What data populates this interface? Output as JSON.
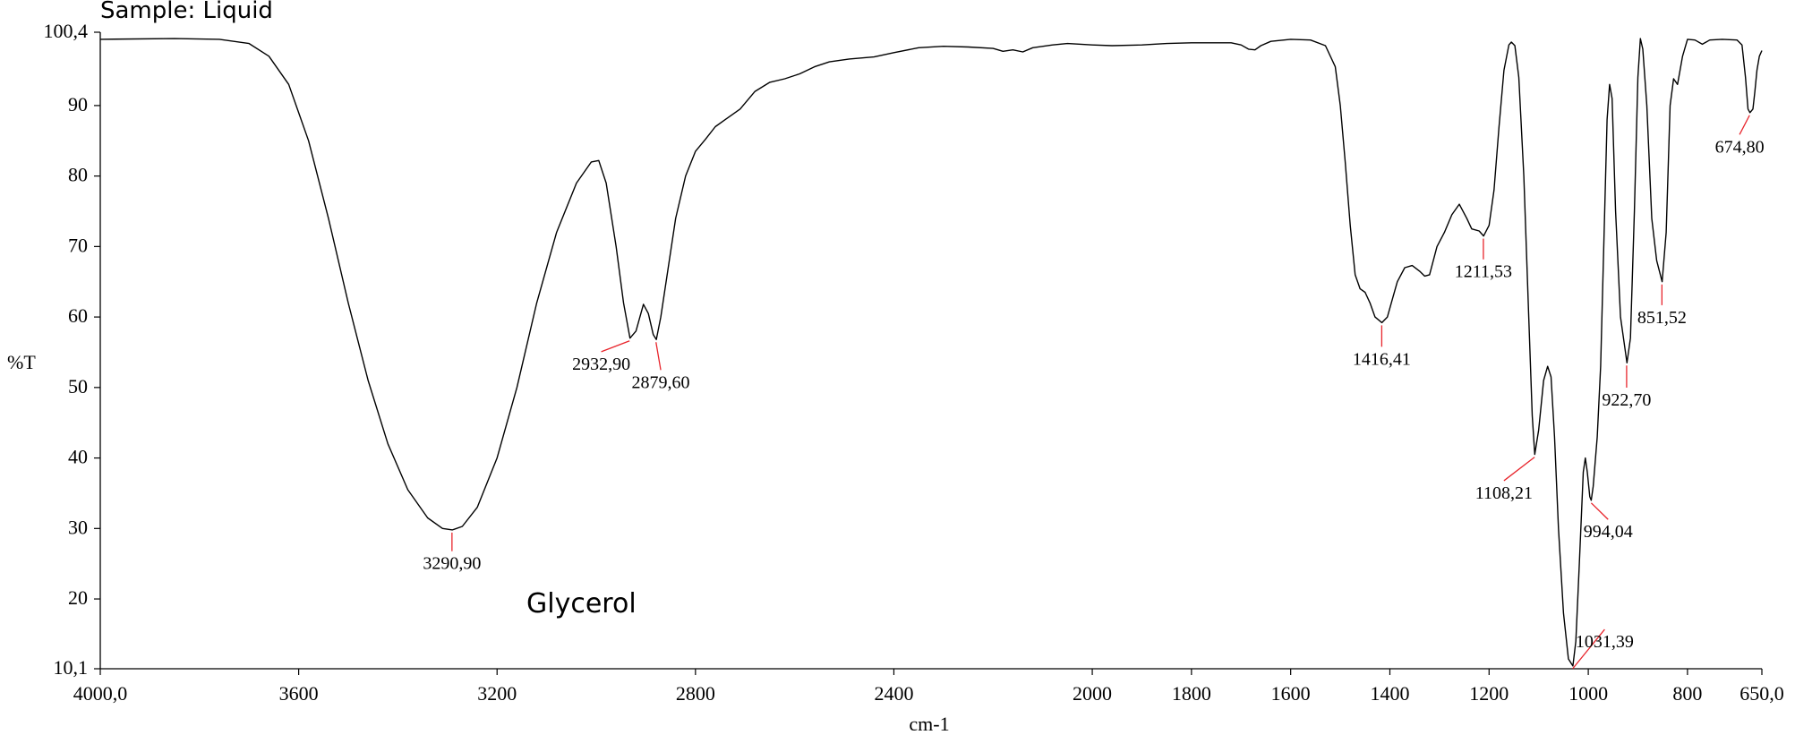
{
  "chart_data": {
    "type": "line",
    "title": "Sample: Liquid",
    "annotation": "Glycerol",
    "xlabel": "cm-1",
    "ylabel": "%T",
    "xlim": [
      4000.0,
      650.0
    ],
    "ylim": [
      10.1,
      100.4
    ],
    "x_reversed": true,
    "grid": false,
    "x_ticks": [
      {
        "value": 4000,
        "label": "4000,0"
      },
      {
        "value": 3600,
        "label": "3600"
      },
      {
        "value": 3200,
        "label": "3200"
      },
      {
        "value": 2800,
        "label": "2800"
      },
      {
        "value": 2400,
        "label": "2400"
      },
      {
        "value": 2000,
        "label": "2000"
      },
      {
        "value": 1800,
        "label": "1800"
      },
      {
        "value": 1600,
        "label": "1600"
      },
      {
        "value": 1400,
        "label": "1400"
      },
      {
        "value": 1200,
        "label": "1200"
      },
      {
        "value": 1000,
        "label": "1000"
      },
      {
        "value": 800,
        "label": "800"
      },
      {
        "value": 650,
        "label": "650,0"
      }
    ],
    "y_ticks": [
      {
        "value": 100.4,
        "label": "100,4"
      },
      {
        "value": 90,
        "label": "90"
      },
      {
        "value": 80,
        "label": "80"
      },
      {
        "value": 70,
        "label": "70"
      },
      {
        "value": 60,
        "label": "60"
      },
      {
        "value": 50,
        "label": "50"
      },
      {
        "value": 40,
        "label": "40"
      },
      {
        "value": 30,
        "label": "30"
      },
      {
        "value": 20,
        "label": "20"
      },
      {
        "value": 10.1,
        "label": "10,1"
      }
    ],
    "series": [
      {
        "color": "#000000",
        "points": [
          [
            4000,
            99.4
          ],
          [
            3850,
            99.5
          ],
          [
            3760,
            99.4
          ],
          [
            3700,
            98.8
          ],
          [
            3660,
            97.0
          ],
          [
            3620,
            93.0
          ],
          [
            3580,
            85.0
          ],
          [
            3540,
            74.0
          ],
          [
            3500,
            62.0
          ],
          [
            3460,
            51.0
          ],
          [
            3420,
            42.0
          ],
          [
            3380,
            35.5
          ],
          [
            3340,
            31.5
          ],
          [
            3310,
            30.0
          ],
          [
            3290,
            29.8
          ],
          [
            3270,
            30.3
          ],
          [
            3240,
            33.0
          ],
          [
            3200,
            40.0
          ],
          [
            3160,
            50.0
          ],
          [
            3120,
            62.0
          ],
          [
            3080,
            72.0
          ],
          [
            3040,
            79.0
          ],
          [
            3010,
            82.0
          ],
          [
            2995,
            82.2
          ],
          [
            2980,
            79.0
          ],
          [
            2960,
            70.0
          ],
          [
            2945,
            62.0
          ],
          [
            2932,
            57.0
          ],
          [
            2920,
            58.0
          ],
          [
            2905,
            61.8
          ],
          [
            2895,
            60.5
          ],
          [
            2885,
            57.5
          ],
          [
            2879,
            56.8
          ],
          [
            2870,
            60.0
          ],
          [
            2855,
            67.0
          ],
          [
            2840,
            74.0
          ],
          [
            2820,
            80.0
          ],
          [
            2800,
            83.5
          ],
          [
            2780,
            85.2
          ],
          [
            2760,
            87.0
          ],
          [
            2740,
            88.0
          ],
          [
            2710,
            89.5
          ],
          [
            2680,
            92.0
          ],
          [
            2650,
            93.3
          ],
          [
            2620,
            93.8
          ],
          [
            2590,
            94.5
          ],
          [
            2560,
            95.5
          ],
          [
            2530,
            96.2
          ],
          [
            2490,
            96.6
          ],
          [
            2440,
            96.9
          ],
          [
            2400,
            97.5
          ],
          [
            2350,
            98.2
          ],
          [
            2300,
            98.4
          ],
          [
            2250,
            98.3
          ],
          [
            2200,
            98.1
          ],
          [
            2180,
            97.7
          ],
          [
            2160,
            97.9
          ],
          [
            2140,
            97.6
          ],
          [
            2120,
            98.2
          ],
          [
            2080,
            98.6
          ],
          [
            2050,
            98.8
          ],
          [
            2000,
            98.6
          ],
          [
            1960,
            98.5
          ],
          [
            1900,
            98.6
          ],
          [
            1850,
            98.8
          ],
          [
            1800,
            98.9
          ],
          [
            1750,
            98.9
          ],
          [
            1720,
            98.9
          ],
          [
            1700,
            98.6
          ],
          [
            1685,
            98.0
          ],
          [
            1672,
            97.9
          ],
          [
            1660,
            98.5
          ],
          [
            1640,
            99.1
          ],
          [
            1600,
            99.4
          ],
          [
            1560,
            99.3
          ],
          [
            1530,
            98.5
          ],
          [
            1510,
            95.5
          ],
          [
            1500,
            90.0
          ],
          [
            1490,
            82.0
          ],
          [
            1480,
            73.0
          ],
          [
            1470,
            66.0
          ],
          [
            1460,
            64.0
          ],
          [
            1450,
            63.5
          ],
          [
            1440,
            62.0
          ],
          [
            1430,
            60.0
          ],
          [
            1416,
            59.2
          ],
          [
            1405,
            60.0
          ],
          [
            1395,
            62.5
          ],
          [
            1385,
            65.0
          ],
          [
            1370,
            67.0
          ],
          [
            1355,
            67.3
          ],
          [
            1340,
            66.5
          ],
          [
            1330,
            65.8
          ],
          [
            1320,
            66.0
          ],
          [
            1305,
            70.0
          ],
          [
            1290,
            72.0
          ],
          [
            1275,
            74.5
          ],
          [
            1260,
            76.0
          ],
          [
            1245,
            74.0
          ],
          [
            1235,
            72.5
          ],
          [
            1220,
            72.2
          ],
          [
            1211,
            71.5
          ],
          [
            1200,
            73.0
          ],
          [
            1190,
            78.0
          ],
          [
            1180,
            87.0
          ],
          [
            1170,
            95.0
          ],
          [
            1160,
            98.6
          ],
          [
            1155,
            99.0
          ],
          [
            1148,
            98.5
          ],
          [
            1140,
            94.0
          ],
          [
            1130,
            80.0
          ],
          [
            1120,
            60.0
          ],
          [
            1113,
            46.0
          ],
          [
            1108,
            40.5
          ],
          [
            1100,
            44.0
          ],
          [
            1090,
            51.0
          ],
          [
            1082,
            53.0
          ],
          [
            1075,
            51.5
          ],
          [
            1068,
            43.0
          ],
          [
            1060,
            30.0
          ],
          [
            1050,
            18.0
          ],
          [
            1040,
            11.5
          ],
          [
            1031,
            10.5
          ],
          [
            1025,
            14.0
          ],
          [
            1018,
            25.0
          ],
          [
            1010,
            38.0
          ],
          [
            1006,
            40.0
          ],
          [
            1002,
            38.0
          ],
          [
            997,
            34.5
          ],
          [
            994,
            34.0
          ],
          [
            990,
            36.0
          ],
          [
            982,
            43.0
          ],
          [
            975,
            53.0
          ],
          [
            968,
            72.0
          ],
          [
            962,
            88.0
          ],
          [
            957,
            93.0
          ],
          [
            952,
            91.0
          ],
          [
            945,
            75.0
          ],
          [
            935,
            60.0
          ],
          [
            922,
            53.5
          ],
          [
            915,
            57.0
          ],
          [
            907,
            75.0
          ],
          [
            900,
            94.0
          ],
          [
            895,
            99.5
          ],
          [
            890,
            98.0
          ],
          [
            882,
            90.0
          ],
          [
            872,
            74.0
          ],
          [
            862,
            68.0
          ],
          [
            851,
            65.0
          ],
          [
            843,
            72.0
          ],
          [
            835,
            90.0
          ],
          [
            828,
            93.8
          ],
          [
            820,
            93.0
          ],
          [
            810,
            97.0
          ],
          [
            800,
            99.4
          ],
          [
            785,
            99.3
          ],
          [
            770,
            98.7
          ],
          [
            755,
            99.3
          ],
          [
            730,
            99.4
          ],
          [
            700,
            99.3
          ],
          [
            690,
            98.6
          ],
          [
            683,
            94.0
          ],
          [
            678,
            89.5
          ],
          [
            674,
            89.0
          ],
          [
            668,
            89.5
          ],
          [
            664,
            92.0
          ],
          [
            660,
            95.0
          ],
          [
            655,
            97.0
          ],
          [
            650,
            97.8
          ]
        ]
      }
    ],
    "peaks": [
      {
        "label": "3290,90",
        "x": 3290.9,
        "y": 29.8,
        "label_x": 3290.9,
        "label_y": 25.0
      },
      {
        "label": "2932,90",
        "x": 2932.9,
        "y": 57.0,
        "label_x": 2990.0,
        "label_y": 53.3
      },
      {
        "label": "2879,60",
        "x": 2879.6,
        "y": 56.8,
        "label_x": 2870.0,
        "label_y": 50.7
      },
      {
        "label": "1416,41",
        "x": 1416.4,
        "y": 59.2,
        "label_x": 1416.4,
        "label_y": 54.0
      },
      {
        "label": "1211,53",
        "x": 1211.5,
        "y": 71.5,
        "label_x": 1211.5,
        "label_y": 66.4
      },
      {
        "label": "1108,21",
        "x": 1108.2,
        "y": 40.5,
        "label_x": 1170.0,
        "label_y": 35.0
      },
      {
        "label": "1031,39",
        "x": 1031.4,
        "y": 10.5,
        "label_x": 967.0,
        "label_y": 13.9
      },
      {
        "label": "994,04",
        "x": 994.0,
        "y": 34.0,
        "label_x": 960.0,
        "label_y": 29.5
      },
      {
        "label": "922,70",
        "x": 922.7,
        "y": 53.5,
        "label_x": 922.7,
        "label_y": 48.2
      },
      {
        "label": "851,52",
        "x": 851.5,
        "y": 65.0,
        "label_x": 851.5,
        "label_y": 59.9
      },
      {
        "label": "674,80",
        "x": 674.8,
        "y": 89.0,
        "label_x": 695.0,
        "label_y": 84.1
      }
    ]
  }
}
